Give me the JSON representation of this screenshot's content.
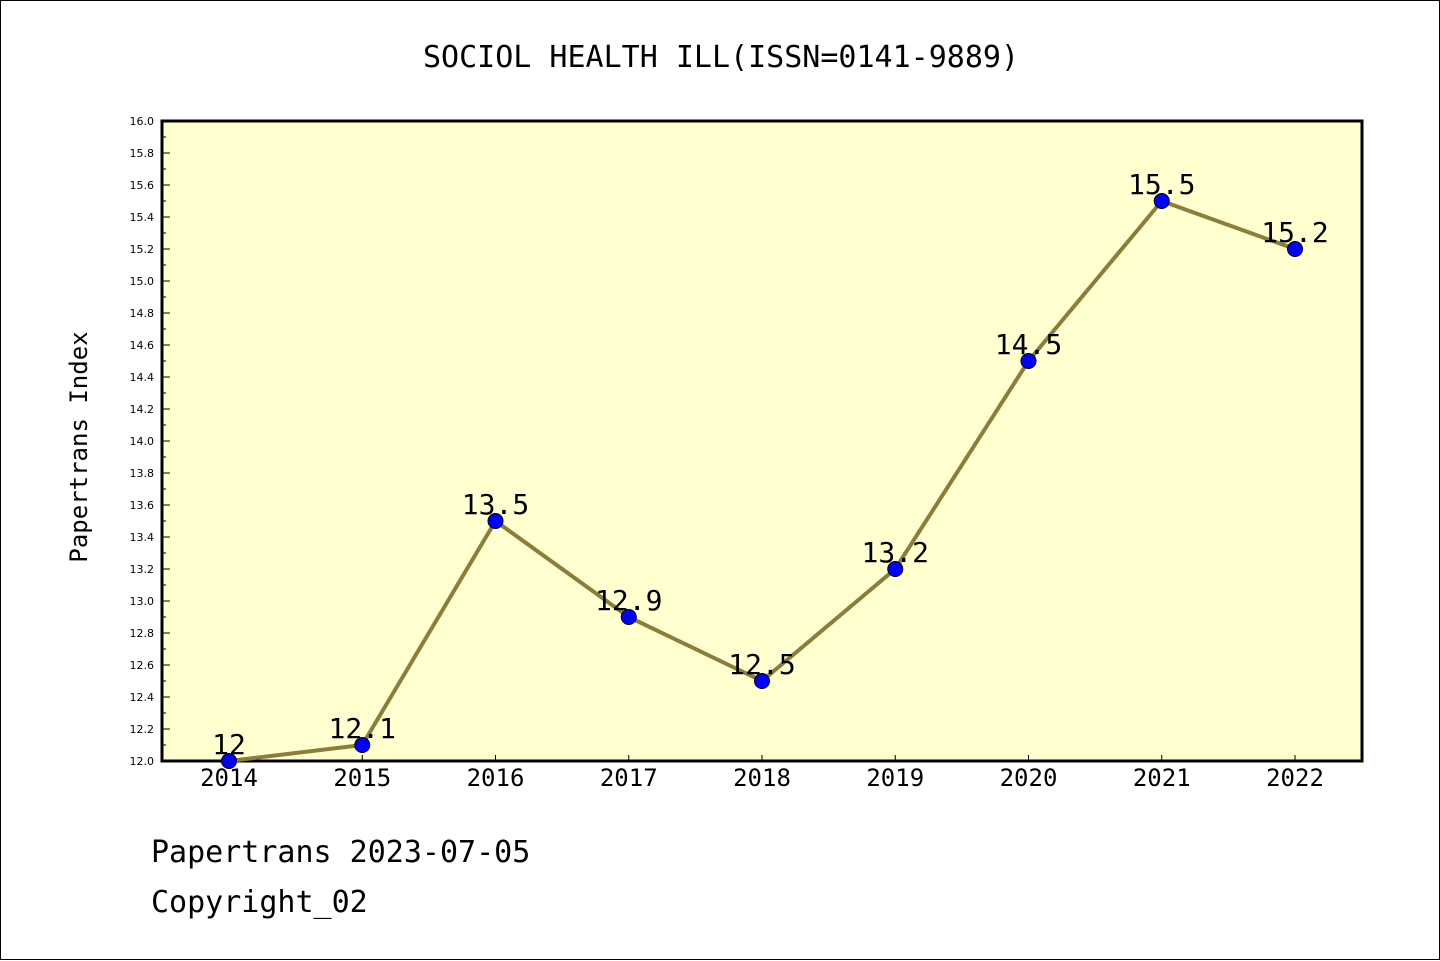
{
  "chart_data": {
    "type": "line",
    "title": "SOCIOL HEALTH ILL(ISSN=0141-9889)",
    "xlabel": "",
    "ylabel": "Papertrans Index",
    "categories": [
      "2014",
      "2015",
      "2016",
      "2017",
      "2018",
      "2019",
      "2020",
      "2021",
      "2022"
    ],
    "series": [
      {
        "values": [
          12,
          12.1,
          13.5,
          12.9,
          12.5,
          13.2,
          14.5,
          15.5,
          15.2
        ],
        "data_labels": [
          "12",
          "12.1",
          "13.5",
          "12.9",
          "12.5",
          "13.2",
          "14.5",
          "15.5",
          "15.2"
        ]
      }
    ],
    "ylim": [
      12.0,
      16.0
    ],
    "yticks": [
      "12.0",
      "12.2",
      "12.4",
      "12.6",
      "12.8",
      "13.0",
      "13.2",
      "13.4",
      "13.6",
      "13.8",
      "14.0",
      "14.2",
      "14.4",
      "14.6",
      "14.8",
      "15.0",
      "15.2",
      "15.4",
      "15.6",
      "15.8",
      "16.0"
    ],
    "grid": false,
    "colors": {
      "plot_background": "#ffffd0",
      "line": "#8b7d3a",
      "marker": "#0000ff"
    }
  },
  "footer": {
    "line1": "Papertrans 2023-07-05",
    "line2": "Copyright_02"
  }
}
